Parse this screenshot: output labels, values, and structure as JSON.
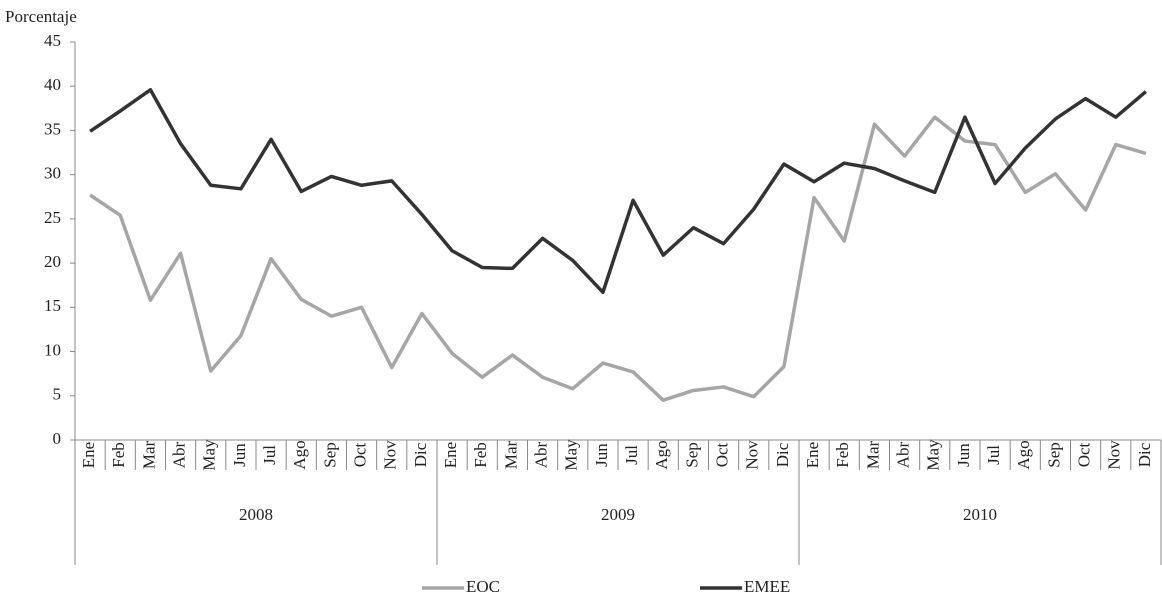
{
  "chart_data": {
    "type": "line",
    "y_axis_label": "Porcentaje",
    "categories": [
      "Ene",
      "Feb",
      "Mar",
      "Abr",
      "May",
      "Jun",
      "Jul",
      "Ago",
      "Sep",
      "Oct",
      "Nov",
      "Dic",
      "Ene",
      "Feb",
      "Mar",
      "Abr",
      "May",
      "Jun",
      "Jul",
      "Ago",
      "Sep",
      "Oct",
      "Nov",
      "Dic",
      "Ene",
      "Feb",
      "Mar",
      "Abr",
      "May",
      "Jun",
      "Jul",
      "Ago",
      "Sep",
      "Oct",
      "Nov",
      "Dic"
    ],
    "years": [
      "2008",
      "2009",
      "2010"
    ],
    "series": [
      {
        "name": "EOC",
        "color": "#a6a6a6",
        "values": [
          27.7,
          25.4,
          15.8,
          21.1,
          7.8,
          11.8,
          20.5,
          15.9,
          14.0,
          15.0,
          8.2,
          14.3,
          9.8,
          7.1,
          9.6,
          7.1,
          5.8,
          8.7,
          7.7,
          4.5,
          5.6,
          6.0,
          4.9,
          8.3,
          27.4,
          22.5,
          35.7,
          32.1,
          36.5,
          33.8,
          33.4,
          28.0,
          30.1,
          26.0,
          33.4,
          32.4
        ]
      },
      {
        "name": "EMEE",
        "color": "#333333",
        "values": [
          34.9,
          37.2,
          39.6,
          33.5,
          28.8,
          28.4,
          34.0,
          28.1,
          29.8,
          28.8,
          29.3,
          25.5,
          21.4,
          19.5,
          19.4,
          22.8,
          20.3,
          16.7,
          27.1,
          20.9,
          24.0,
          22.2,
          26.1,
          31.2,
          29.2,
          31.3,
          30.7,
          29.3,
          28.0,
          36.5,
          29.0,
          33.0,
          36.3,
          38.6,
          36.5,
          39.4
        ]
      }
    ],
    "ylim": [
      0,
      45
    ],
    "yticks": [
      0,
      5,
      10,
      15,
      20,
      25,
      30,
      35,
      40,
      45
    ]
  }
}
